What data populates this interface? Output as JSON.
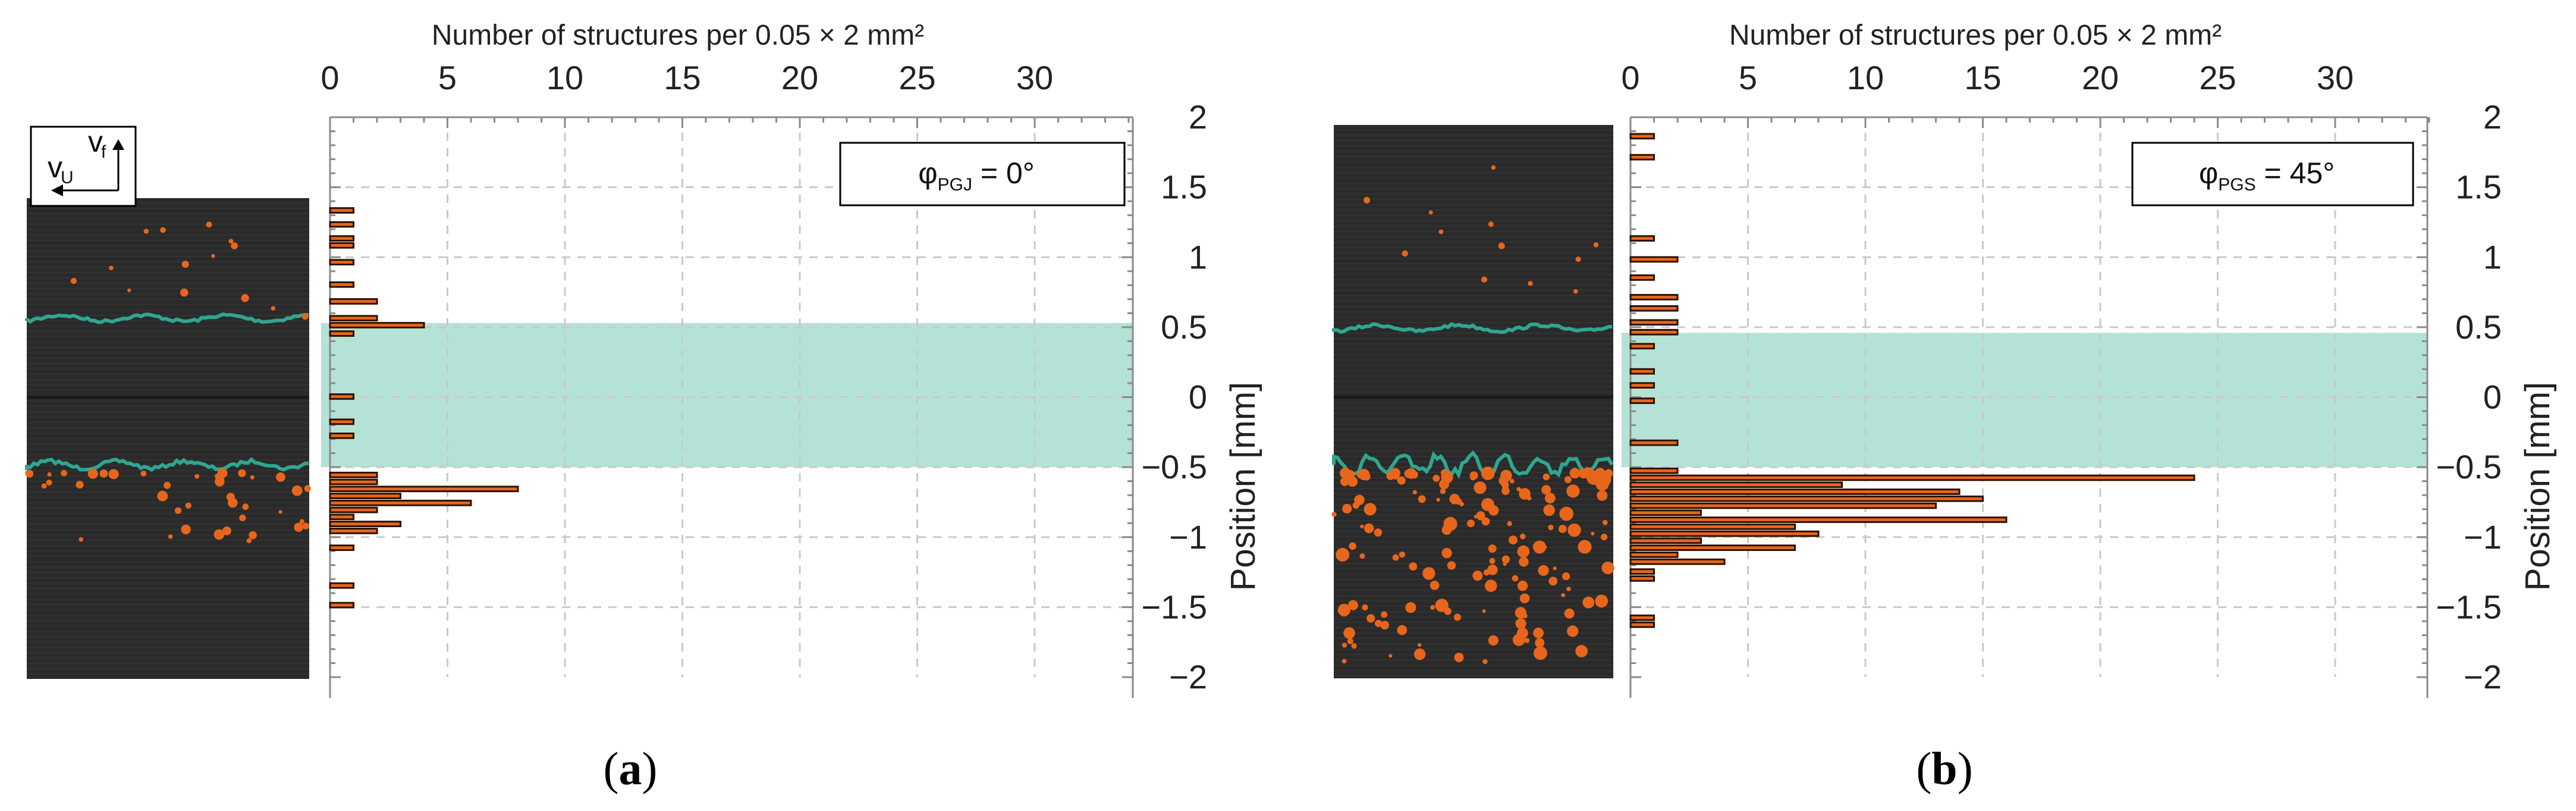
{
  "top_axis_label": "Number of structures per 0.05 × 2 mm²",
  "y_axis_label": "Position [mm]",
  "colors": {
    "bar": "#e8661c",
    "band": "#a8ddd0",
    "interface_line": "#2fa690",
    "image_bg": "#2a2a2a"
  },
  "chart_data": [
    {
      "type": "bar",
      "orientation": "horizontal",
      "caption_open": "(",
      "caption_letter": "a",
      "caption_close": ")",
      "legend_main": "φ",
      "legend_sub": "PGJ",
      "legend_value": " = 0°",
      "inset_labels": {
        "vertical": "v",
        "vertical_sub": "f",
        "horizontal": "v",
        "horizontal_sub": "U"
      },
      "xlim": [
        0,
        34
      ],
      "xticks": [
        0,
        5,
        10,
        15,
        20,
        25,
        30
      ],
      "ylim": [
        -2,
        2
      ],
      "yticks": [
        2,
        1.5,
        1,
        0.5,
        0,
        -0.5,
        -1,
        -1.5,
        -2
      ],
      "ytick_labels": [
        "2",
        "1.5",
        "1",
        "0.5",
        "0",
        "−0.5",
        "−1",
        "−1.5",
        "−2"
      ],
      "band": [
        -0.5,
        0.53
      ],
      "bin_height": 0.05,
      "bars": [
        {
          "y": 1.33,
          "value": 1
        },
        {
          "y": 1.23,
          "value": 1
        },
        {
          "y": 1.13,
          "value": 1
        },
        {
          "y": 1.08,
          "value": 1
        },
        {
          "y": 0.96,
          "value": 1
        },
        {
          "y": 0.8,
          "value": 1
        },
        {
          "y": 0.68,
          "value": 2
        },
        {
          "y": 0.56,
          "value": 2
        },
        {
          "y": 0.51,
          "value": 4
        },
        {
          "y": 0.45,
          "value": 1
        },
        {
          "y": 0.0,
          "value": 1
        },
        {
          "y": -0.18,
          "value": 1
        },
        {
          "y": -0.28,
          "value": 1
        },
        {
          "y": -0.56,
          "value": 2
        },
        {
          "y": -0.61,
          "value": 2
        },
        {
          "y": -0.66,
          "value": 8
        },
        {
          "y": -0.71,
          "value": 3
        },
        {
          "y": -0.76,
          "value": 6
        },
        {
          "y": -0.81,
          "value": 2
        },
        {
          "y": -0.86,
          "value": 1
        },
        {
          "y": -0.91,
          "value": 3
        },
        {
          "y": -0.96,
          "value": 2
        },
        {
          "y": -1.08,
          "value": 1
        },
        {
          "y": -1.35,
          "value": 1
        },
        {
          "y": -1.49,
          "value": 1
        }
      ]
    },
    {
      "type": "bar",
      "orientation": "horizontal",
      "caption_open": "(",
      "caption_letter": "b",
      "caption_close": ")",
      "legend_main": "φ",
      "legend_sub": "PGS",
      "legend_value": " = 45°",
      "xlim": [
        0,
        34
      ],
      "xticks": [
        0,
        5,
        10,
        15,
        20,
        25,
        30
      ],
      "ylim": [
        -2,
        2
      ],
      "yticks": [
        2,
        1.5,
        1,
        0.5,
        0,
        -0.5,
        -1,
        -1.5,
        -2
      ],
      "ytick_labels": [
        "2",
        "1.5",
        "1",
        "0.5",
        "0",
        "−0.5",
        "−1",
        "−1.5",
        "−2"
      ],
      "band": [
        -0.5,
        0.46
      ],
      "bin_height": 0.05,
      "bars": [
        {
          "y": 1.86,
          "value": 1
        },
        {
          "y": 1.71,
          "value": 1
        },
        {
          "y": 1.13,
          "value": 1
        },
        {
          "y": 0.98,
          "value": 2
        },
        {
          "y": 0.85,
          "value": 1
        },
        {
          "y": 0.71,
          "value": 2
        },
        {
          "y": 0.63,
          "value": 2
        },
        {
          "y": 0.53,
          "value": 2
        },
        {
          "y": 0.46,
          "value": 2
        },
        {
          "y": 0.36,
          "value": 1
        },
        {
          "y": 0.18,
          "value": 1
        },
        {
          "y": 0.08,
          "value": 1
        },
        {
          "y": -0.03,
          "value": 1
        },
        {
          "y": -0.33,
          "value": 2
        },
        {
          "y": -0.53,
          "value": 2
        },
        {
          "y": -0.58,
          "value": 24
        },
        {
          "y": -0.63,
          "value": 9
        },
        {
          "y": -0.68,
          "value": 14
        },
        {
          "y": -0.73,
          "value": 15
        },
        {
          "y": -0.78,
          "value": 13
        },
        {
          "y": -0.83,
          "value": 3
        },
        {
          "y": -0.88,
          "value": 16
        },
        {
          "y": -0.93,
          "value": 7
        },
        {
          "y": -0.98,
          "value": 8
        },
        {
          "y": -1.03,
          "value": 3
        },
        {
          "y": -1.08,
          "value": 7
        },
        {
          "y": -1.13,
          "value": 2
        },
        {
          "y": -1.18,
          "value": 4
        },
        {
          "y": -1.25,
          "value": 1
        },
        {
          "y": -1.3,
          "value": 1
        },
        {
          "y": -1.58,
          "value": 1
        },
        {
          "y": -1.63,
          "value": 1
        }
      ]
    }
  ]
}
